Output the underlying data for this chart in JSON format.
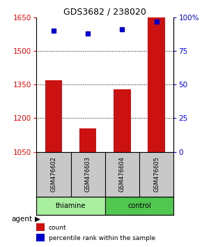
{
  "title": "GDS3682 / 238020",
  "samples": [
    "GSM476602",
    "GSM476603",
    "GSM476604",
    "GSM476605"
  ],
  "counts": [
    1370,
    1155,
    1330,
    1650
  ],
  "percentile_ranks": [
    90,
    88,
    91,
    97
  ],
  "ylim_left": [
    1050,
    1650
  ],
  "ylim_right": [
    0,
    100
  ],
  "yticks_left": [
    1050,
    1200,
    1350,
    1500,
    1650
  ],
  "yticks_right": [
    0,
    25,
    50,
    75,
    100
  ],
  "bar_color": "#CC1111",
  "dot_color": "#0000CC",
  "background_color": "#ffffff",
  "plot_bg_color": "#ffffff",
  "sample_bg_color": "#C8C8C8",
  "thiamine_color": "#A8F0A0",
  "control_color": "#50C850",
  "agent_label": "agent",
  "legend_count_label": "count",
  "legend_pct_label": "percentile rank within the sample",
  "group_label_thiamine": "thiamine",
  "group_label_control": "control"
}
